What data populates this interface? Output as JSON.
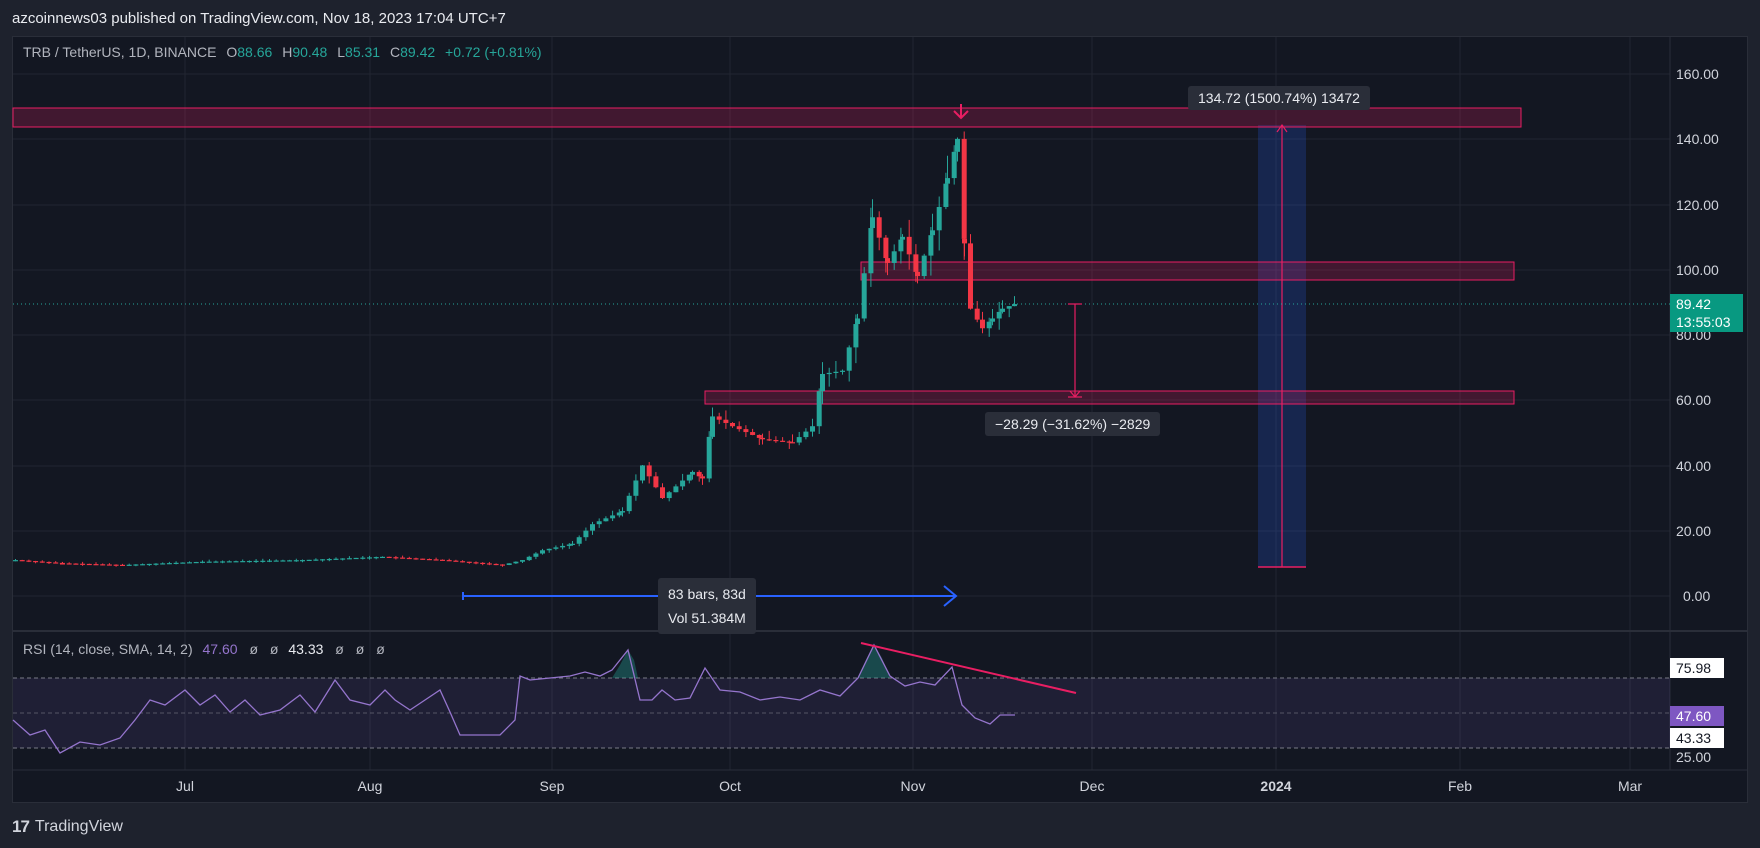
{
  "header": {
    "published_text": "azcoinnews03 published on TradingView.com, Nov 18, 2023 17:04 UTC+7"
  },
  "symbol_bar": {
    "symbol": "TRB / TetherUS, 1D, BINANCE",
    "open_label": "O",
    "open": "88.66",
    "high_label": "H",
    "high": "90.48",
    "low_label": "L",
    "low": "85.31",
    "close_label": "C",
    "close": "89.42",
    "change": "+0.72 (+0.81%)"
  },
  "price_axis": {
    "labels": [
      "160.00",
      "140.00",
      "120.00",
      "100.00",
      "80.00",
      "60.00",
      "40.00",
      "20.00",
      "0.00"
    ],
    "last_price": "89.42",
    "countdown": "13:55:03"
  },
  "time_axis": {
    "labels": [
      "Jul",
      "Aug",
      "Sep",
      "Oct",
      "Nov",
      "Dec",
      "2024",
      "Feb",
      "Mar"
    ]
  },
  "annotations": {
    "long_measure": "134.72 (1500.74%) 13472",
    "short_measure": "−28.29 (−31.62%) −2829",
    "date_range_bars": "83 bars, 83d",
    "date_range_vol": "Vol 51.384M"
  },
  "rsi_bar": {
    "name": "RSI (14, close, SMA, 14, 2)",
    "rsi_value": "47.60",
    "null1": "ø",
    "null2": "ø",
    "sma_value": "43.33",
    "null3": "ø",
    "null4": "ø",
    "null5": "ø"
  },
  "rsi_axis": {
    "upper": "75.98",
    "current": "47.60",
    "sma": "43.33",
    "lower": "25.00"
  },
  "footer": {
    "logo": "17",
    "brand": "TradingView"
  },
  "colors": {
    "up": "#26a69a",
    "down": "#f23645",
    "zone": "#e91e63",
    "rsi": "#9575cd",
    "measure_blue": "#2962ff"
  }
}
